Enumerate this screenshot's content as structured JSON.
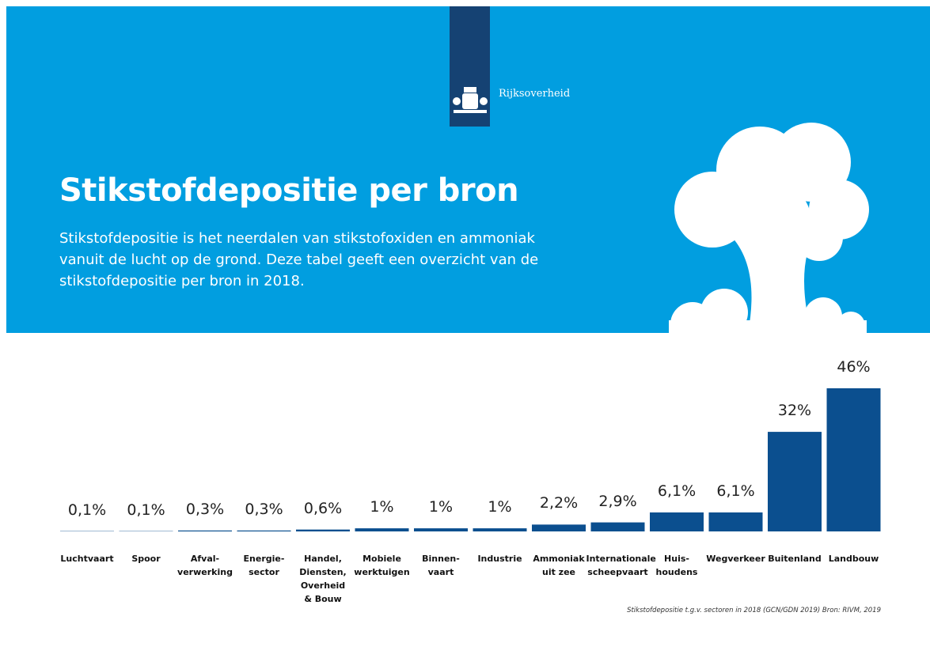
{
  "header": {
    "logo_text": "Rijksoverheid"
  },
  "chart_data": {
    "type": "bar",
    "title": "Stikstofdepositie per bron",
    "subtitle": "Stikstofdepositie is het neerdalen van stikstofoxiden en ammoniak vanuit de lucht op de grond. Deze tabel geeft een overzicht van de stikstofdepositie per bron in 2018.",
    "categories": [
      "Luchtvaart",
      "Spoor",
      "Afval-\nverwerking",
      "Energie-\nsector",
      "Handel,\nDiensten,\nOverheid\n& Bouw",
      "Mobiele\nwerktuigen",
      "Binnen-\nvaart",
      "Industrie",
      "Ammoniak\nuit zee",
      "Internationale\nscheepvaart",
      "Huis-\nhoudens",
      "Wegverkeer",
      "Buitenland",
      "Landbouw"
    ],
    "values": [
      0.1,
      0.1,
      0.3,
      0.3,
      0.6,
      1,
      1,
      1,
      2.2,
      2.9,
      6.1,
      6.1,
      32,
      46
    ],
    "value_labels": [
      "0,1%",
      "0,1%",
      "0,3%",
      "0,3%",
      "0,6%",
      "1%",
      "1%",
      "1%",
      "2,2%",
      "2,9%",
      "6,1%",
      "6,1%",
      "32%",
      "46%"
    ],
    "color": "#0b4f8f",
    "source": "Stikstofdepositie t.g.v. sectoren in 2018 (GCN/GDN 2019) Bron: RIVM, 2019"
  }
}
